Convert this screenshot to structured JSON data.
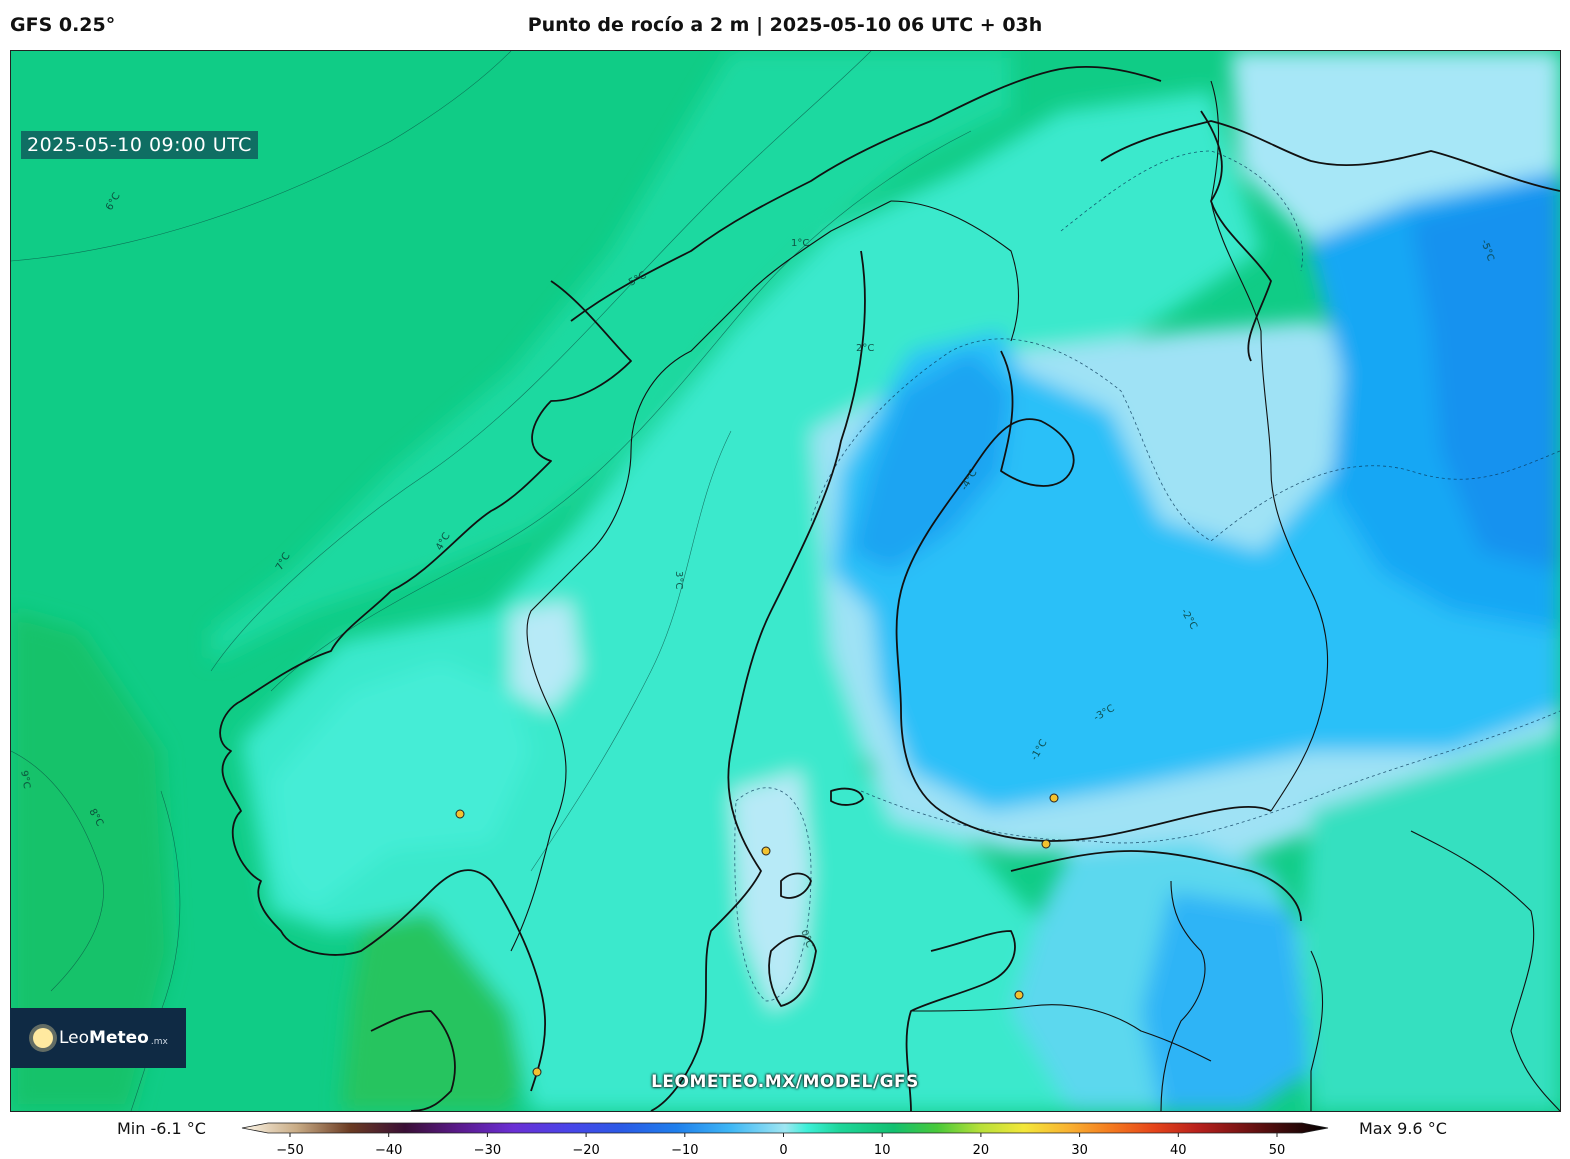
{
  "header": {
    "model": "GFS 0.25°",
    "title": "Punto de rocío a 2 m | 2025-05-10 06 UTC + 03h"
  },
  "map": {
    "valid_time": "2025-05-10 09:00 UTC",
    "watermark": "LEOMETEO.MX/MODEL/GFS",
    "contour_labels": [
      {
        "text": "6°C"
      },
      {
        "text": "7°C"
      },
      {
        "text": "8°C"
      },
      {
        "text": "9°C"
      },
      {
        "text": "5°C"
      },
      {
        "text": "4°C"
      },
      {
        "text": "3°C"
      },
      {
        "text": "2°C"
      },
      {
        "text": "1°C"
      },
      {
        "text": "0°C"
      },
      {
        "text": "-1°C"
      },
      {
        "text": "-2°C"
      },
      {
        "text": "-3°C"
      },
      {
        "text": "-4°C"
      },
      {
        "text": "-5°C"
      }
    ]
  },
  "logo": {
    "name_light": "Leo",
    "name_bold": "Meteo",
    "suffix": ".mx"
  },
  "colorbar": {
    "min_label": "Min -6.1 °C",
    "max_label": "Max 9.6 °C",
    "range": [
      -50,
      50
    ],
    "ticks": [
      "−50",
      "−40",
      "−30",
      "−20",
      "−10",
      "0",
      "10",
      "20",
      "30",
      "40",
      "50"
    ],
    "stops": [
      {
        "v": -50,
        "color": "#fdf6e8"
      },
      {
        "v": -45,
        "color": "#c9ac86"
      },
      {
        "v": -40,
        "color": "#6a3a22"
      },
      {
        "v": -35,
        "color": "#3a0f35"
      },
      {
        "v": -30,
        "color": "#5a1a8c"
      },
      {
        "v": -25,
        "color": "#6a2fd4"
      },
      {
        "v": -20,
        "color": "#4a44e8"
      },
      {
        "v": -15,
        "color": "#2a5ae6"
      },
      {
        "v": -10,
        "color": "#1f7fec"
      },
      {
        "v": -5,
        "color": "#3fb7f5"
      },
      {
        "v": 0,
        "color": "#9fe6f2"
      },
      {
        "v": 2,
        "color": "#3ef0d8"
      },
      {
        "v": 5,
        "color": "#1ed69a"
      },
      {
        "v": 10,
        "color": "#12c070"
      },
      {
        "v": 14,
        "color": "#49c93a"
      },
      {
        "v": 18,
        "color": "#b8e03a"
      },
      {
        "v": 22,
        "color": "#f3e73a"
      },
      {
        "v": 26,
        "color": "#f8b332"
      },
      {
        "v": 30,
        "color": "#f47a1f"
      },
      {
        "v": 34,
        "color": "#e5441a"
      },
      {
        "v": 38,
        "color": "#b8201c"
      },
      {
        "v": 42,
        "color": "#7a1414"
      },
      {
        "v": 46,
        "color": "#3a0a0a"
      },
      {
        "v": 50,
        "color": "#000000"
      }
    ]
  },
  "stations": [
    {
      "name": "",
      "value": ""
    }
  ]
}
